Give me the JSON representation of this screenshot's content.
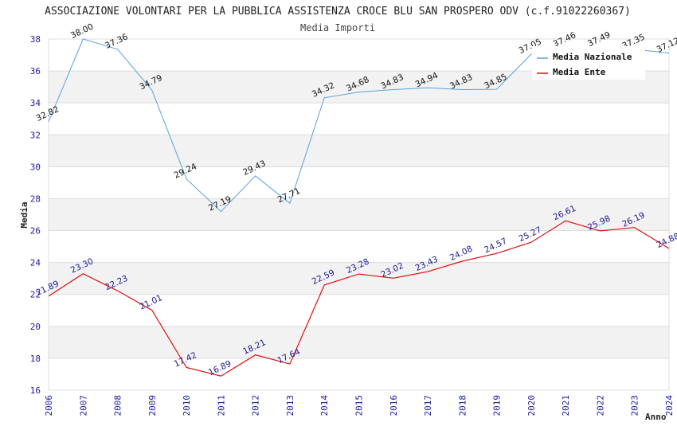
{
  "chart_data": {
    "type": "line",
    "title": "ASSOCIAZIONE VOLONTARI PER LA PUBBLICA ASSISTENZA CROCE BLU SAN PROSPERO ODV (c.f.91022260367)",
    "subtitle": "Media Importi",
    "xlabel": "Anno",
    "ylabel": "Media",
    "ylim": [
      16,
      38
    ],
    "yticks": [
      "16",
      "18",
      "20",
      "22",
      "24",
      "26",
      "28",
      "30",
      "32",
      "34",
      "36",
      "38"
    ],
    "categories": [
      "2006",
      "2007",
      "2008",
      "2009",
      "2010",
      "2011",
      "2012",
      "2013",
      "2014",
      "2015",
      "2016",
      "2017",
      "2018",
      "2019",
      "2020",
      "2021",
      "2022",
      "2023",
      "2024"
    ],
    "series": [
      {
        "name": "Media Nazionale",
        "color": "#5aa0e0",
        "values": [
          32.82,
          38.0,
          37.36,
          34.79,
          29.24,
          27.19,
          29.43,
          27.71,
          34.32,
          34.68,
          34.83,
          34.94,
          34.83,
          34.85,
          37.05,
          37.46,
          37.49,
          37.35,
          37.12
        ],
        "labels": [
          "32.82",
          "38.00",
          "37.36",
          "34.79",
          "29.24",
          "27.19",
          "29.43",
          "27.71",
          "34.32",
          "34.68",
          "34.83",
          "34.94",
          "34.83",
          "34.85",
          "37.05",
          "37.46",
          "37.49",
          "37.35",
          "37.12"
        ]
      },
      {
        "name": "Media Ente",
        "color": "#e01010",
        "values": [
          21.89,
          23.3,
          22.23,
          21.01,
          17.42,
          16.89,
          18.21,
          17.64,
          22.59,
          23.28,
          23.02,
          23.43,
          24.08,
          24.57,
          25.27,
          26.61,
          25.98,
          26.19,
          24.88
        ],
        "labels": [
          "21.89",
          "23.30",
          "22.23",
          "21.01",
          "17.42",
          "16.89",
          "18.21",
          "17.64",
          "22.59",
          "23.28",
          "23.02",
          "23.43",
          "24.08",
          "24.57",
          "25.27",
          "26.61",
          "25.98",
          "26.19",
          "24.88"
        ]
      }
    ],
    "grid": true,
    "legend": "top-right"
  }
}
